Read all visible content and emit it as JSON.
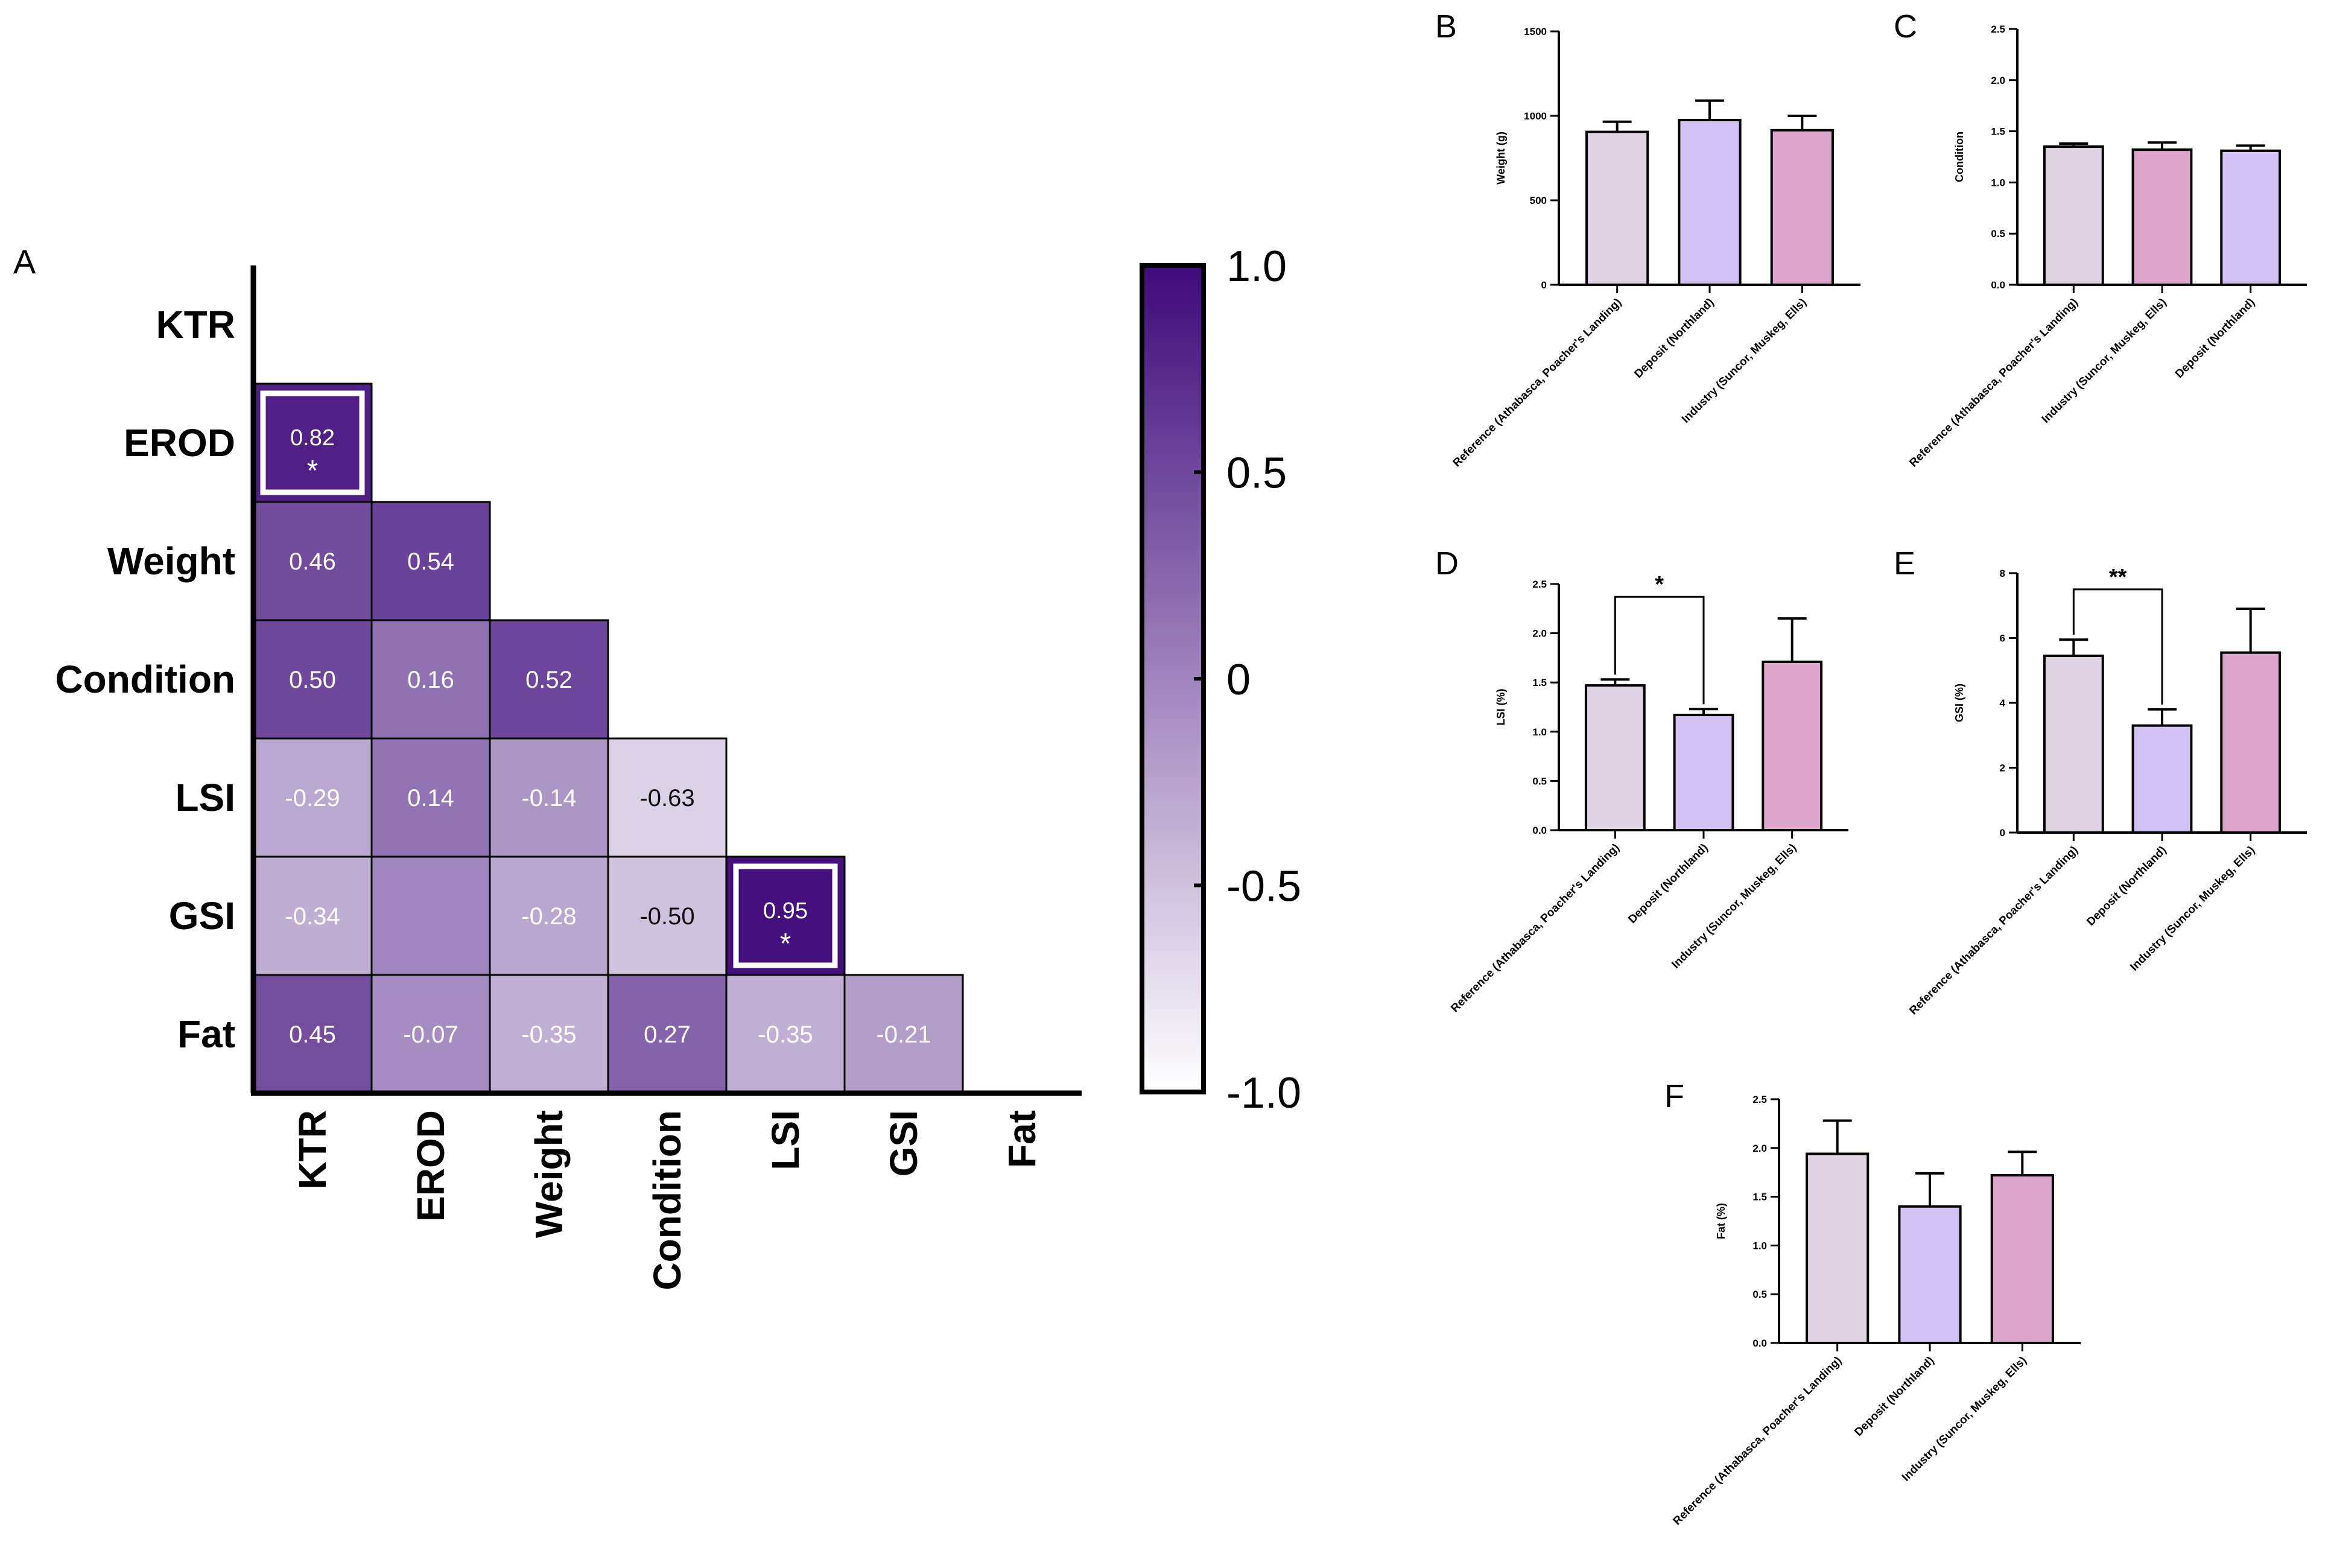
{
  "chart_data": [
    {
      "panel": "A",
      "type": "heatmap",
      "labels": [
        "KTR",
        "EROD",
        "Weight",
        "Condition",
        "LSI",
        "GSI",
        "Fat"
      ],
      "cells": [
        {
          "row": "EROD",
          "col": "KTR",
          "value": 0.82,
          "label": "0.82",
          "sig": "*"
        },
        {
          "row": "Weight",
          "col": "KTR",
          "value": 0.46,
          "label": "0.46"
        },
        {
          "row": "Weight",
          "col": "EROD",
          "value": 0.54,
          "label": "0.54"
        },
        {
          "row": "Condition",
          "col": "KTR",
          "value": 0.5,
          "label": "0.50"
        },
        {
          "row": "Condition",
          "col": "EROD",
          "value": 0.16,
          "label": "0.16"
        },
        {
          "row": "Condition",
          "col": "Weight",
          "value": 0.52,
          "label": "0.52"
        },
        {
          "row": "LSI",
          "col": "KTR",
          "value": -0.29,
          "label": "-0.29"
        },
        {
          "row": "LSI",
          "col": "EROD",
          "value": 0.14,
          "label": "0.14"
        },
        {
          "row": "LSI",
          "col": "Weight",
          "value": -0.14,
          "label": "-0.14"
        },
        {
          "row": "LSI",
          "col": "Condition",
          "value": -0.63,
          "label": "-0.63"
        },
        {
          "row": "GSI",
          "col": "KTR",
          "value": -0.34,
          "label": "-0.34"
        },
        {
          "row": "GSI",
          "col": "EROD",
          "value": 0.0,
          "label": ""
        },
        {
          "row": "GSI",
          "col": "Weight",
          "value": -0.28,
          "label": "-0.28"
        },
        {
          "row": "GSI",
          "col": "Condition",
          "value": -0.5,
          "label": "-0.50"
        },
        {
          "row": "GSI",
          "col": "LSI",
          "value": 0.95,
          "label": "0.95",
          "sig": "*"
        },
        {
          "row": "Fat",
          "col": "KTR",
          "value": 0.45,
          "label": "0.45"
        },
        {
          "row": "Fat",
          "col": "EROD",
          "value": -0.07,
          "label": "-0.07"
        },
        {
          "row": "Fat",
          "col": "Weight",
          "value": -0.35,
          "label": "-0.35"
        },
        {
          "row": "Fat",
          "col": "Condition",
          "value": 0.27,
          "label": "0.27"
        },
        {
          "row": "Fat",
          "col": "LSI",
          "value": -0.35,
          "label": "-0.35"
        },
        {
          "row": "Fat",
          "col": "GSI",
          "value": -0.21,
          "label": "-0.21"
        }
      ],
      "colorbar": {
        "range": [
          -1,
          1
        ],
        "ticks": [
          "1.0",
          "0.5",
          "0",
          "-0.5",
          "-1.0"
        ],
        "color_low": "#ffffff",
        "color_high": "#3f0a7a"
      }
    },
    {
      "panel": "B",
      "type": "bar",
      "ylabel": "Weight (g)",
      "ylim": [
        0,
        1500
      ],
      "yticks": [
        "0",
        "500",
        "1000",
        "1500"
      ],
      "categories": [
        "Reference (Athabasca, Poacher's Landing)",
        "Deposit (Northland)",
        "Industry (Suncor, Muskeg, Ells)"
      ],
      "values": [
        905,
        975,
        915
      ],
      "errors": [
        60,
        115,
        85
      ]
    },
    {
      "panel": "C",
      "type": "bar",
      "ylabel": "Condition",
      "ylim": [
        0,
        2.5
      ],
      "yticks": [
        "0.0",
        "0.5",
        "1.0",
        "1.5",
        "2.0",
        "2.5"
      ],
      "categories": [
        "Reference (Athabasca, Poacher's Landing)",
        "Industry (Suncor, Muskeg, Ells)",
        "Deposit (Northland)"
      ],
      "values": [
        1.35,
        1.32,
        1.31
      ],
      "errors": [
        0.03,
        0.07,
        0.05
      ]
    },
    {
      "panel": "D",
      "type": "bar",
      "ylabel": "LSI (%)",
      "ylim": [
        0,
        2.5
      ],
      "yticks": [
        "0.0",
        "0.5",
        "1.0",
        "1.5",
        "2.0",
        "2.5"
      ],
      "categories": [
        "Reference (Athabasca, Poacher's Landing)",
        "Deposit (Northland)",
        "Industry (Suncor, Muskeg, Ells)"
      ],
      "values": [
        1.47,
        1.17,
        1.71
      ],
      "errors": [
        0.06,
        0.06,
        0.44
      ],
      "bracket": {
        "from": 0,
        "to": 1,
        "y": 2.37,
        "label": "*"
      }
    },
    {
      "panel": "E",
      "type": "bar",
      "ylabel": "GSI (%)",
      "ylim": [
        0,
        8
      ],
      "yticks": [
        "0",
        "2",
        "4",
        "6",
        "8"
      ],
      "categories": [
        "Reference (Athabasca, Poacher's Landing)",
        "Deposit (Northland)",
        "Industry (Suncor, Muskeg, Ells)"
      ],
      "values": [
        5.45,
        3.3,
        5.55
      ],
      "errors": [
        0.5,
        0.5,
        1.35
      ],
      "bracket": {
        "from": 0,
        "to": 1,
        "y": 7.5,
        "label": "**"
      }
    },
    {
      "panel": "F",
      "type": "bar",
      "ylabel": "Fat (%)",
      "ylim": [
        0,
        2.5
      ],
      "yticks": [
        "0.0",
        "0.5",
        "1.0",
        "1.5",
        "2.0",
        "2.5"
      ],
      "categories": [
        "Reference (Athabasca, Poacher's Landing)",
        "Deposit (Northland)",
        "Industry (Suncor, Muskeg, Ells)"
      ],
      "values": [
        1.94,
        1.4,
        1.72
      ],
      "errors": [
        0.34,
        0.34,
        0.24
      ]
    }
  ],
  "colors": {
    "bar_reference": "#e0d3e3",
    "bar_deposit": "#d2c2f4",
    "bar_industry": "#dba6c9",
    "heat_high": "#3f0a7a",
    "heat_low": "#ffffff"
  }
}
